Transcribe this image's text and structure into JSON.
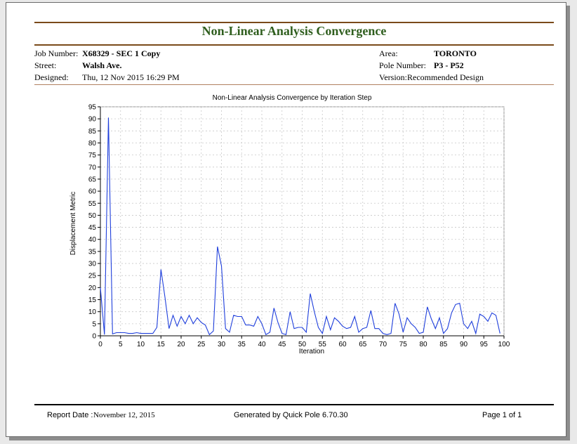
{
  "report": {
    "title": "Non-Linear Analysis Convergence",
    "job_number_label": "Job Number:",
    "job_number": "X68329 - SEC 1 Copy",
    "street_label": "Street:",
    "street": "Walsh Ave.",
    "designed_label": "Designed:",
    "designed": "Thu, 12 Nov 2015 16:29 PM",
    "area_label": "Area:",
    "area": "TORONTO",
    "pole_number_label": "Pole Number:",
    "pole_number": "P3 - P52",
    "version_label": "Version:",
    "version": "Recommended Design"
  },
  "footer": {
    "report_date_label": "Report Date :",
    "report_date": "November 12, 2015",
    "generated": "Generated by Quick Pole 6.70.30",
    "page": "Page 1 of 1"
  },
  "colors": {
    "title": "#2f5e1e",
    "rule": "#7a4a1a",
    "series": "#1f3fdc"
  },
  "chart_data": {
    "type": "line",
    "title": "Non-Linear Analysis Convergence by Iteration Step",
    "xlabel": "Iteration",
    "ylabel": "Displacement Metric",
    "xlim": [
      0,
      100
    ],
    "ylim": [
      0,
      95
    ],
    "xticks": [
      0,
      5,
      10,
      15,
      20,
      25,
      30,
      35,
      40,
      45,
      50,
      55,
      60,
      65,
      70,
      75,
      80,
      85,
      90,
      95,
      100
    ],
    "yticks": [
      0,
      5,
      10,
      15,
      20,
      25,
      30,
      35,
      40,
      45,
      50,
      55,
      60,
      65,
      70,
      75,
      80,
      85,
      90,
      95
    ],
    "grid": true,
    "x": [
      0,
      1,
      2,
      3,
      4,
      5,
      6,
      7,
      8,
      9,
      10,
      11,
      12,
      13,
      14,
      15,
      16,
      17,
      18,
      19,
      20,
      21,
      22,
      23,
      24,
      25,
      26,
      27,
      28,
      29,
      30,
      31,
      32,
      33,
      34,
      35,
      36,
      37,
      38,
      39,
      40,
      41,
      42,
      43,
      44,
      45,
      46,
      47,
      48,
      49,
      50,
      51,
      52,
      53,
      54,
      55,
      56,
      57,
      58,
      59,
      60,
      61,
      62,
      63,
      64,
      65,
      66,
      67,
      68,
      69,
      70,
      71,
      72,
      73,
      74,
      75,
      76,
      77,
      78,
      79,
      80,
      81,
      82,
      83,
      84,
      85,
      86,
      87,
      88,
      89,
      90,
      91,
      92,
      93,
      94,
      95,
      96,
      97,
      98,
      99
    ],
    "y": [
      20,
      0.5,
      90.5,
      0.8,
      1.3,
      1.3,
      1.3,
      1.0,
      1.0,
      1.3,
      1.0,
      1.0,
      1.0,
      1.0,
      3.5,
      27.5,
      16,
      3.0,
      8.5,
      4.0,
      8.0,
      5.0,
      8.5,
      5.0,
      7.5,
      5.5,
      4.5,
      0.5,
      2.0,
      37,
      29,
      3.0,
      1.5,
      8.5,
      8.0,
      8.0,
      4.5,
      4.5,
      4.0,
      8.0,
      5.0,
      0.5,
      1.5,
      11.5,
      5.5,
      1.0,
      0.5,
      10,
      3.0,
      3.5,
      3.5,
      1.5,
      17.5,
      10,
      3.5,
      1.0,
      8.0,
      2.5,
      7.5,
      6.0,
      4.0,
      3.0,
      3.5,
      8.0,
      1.5,
      3.0,
      3.5,
      10.5,
      3.0,
      3.0,
      1.0,
      0.5,
      1.0,
      13.5,
      9.0,
      1.5,
      7.5,
      5.0,
      3.5,
      1.0,
      1.5,
      12,
      7.0,
      3.0,
      7.5,
      1.0,
      3.0,
      9.5,
      13,
      13.5,
      5.0,
      3.0,
      6.0,
      1.0,
      9.0,
      8.0,
      6.0,
      9.5,
      8.5,
      1.0
    ],
    "series": [
      {
        "values_ref": "y"
      }
    ]
  }
}
